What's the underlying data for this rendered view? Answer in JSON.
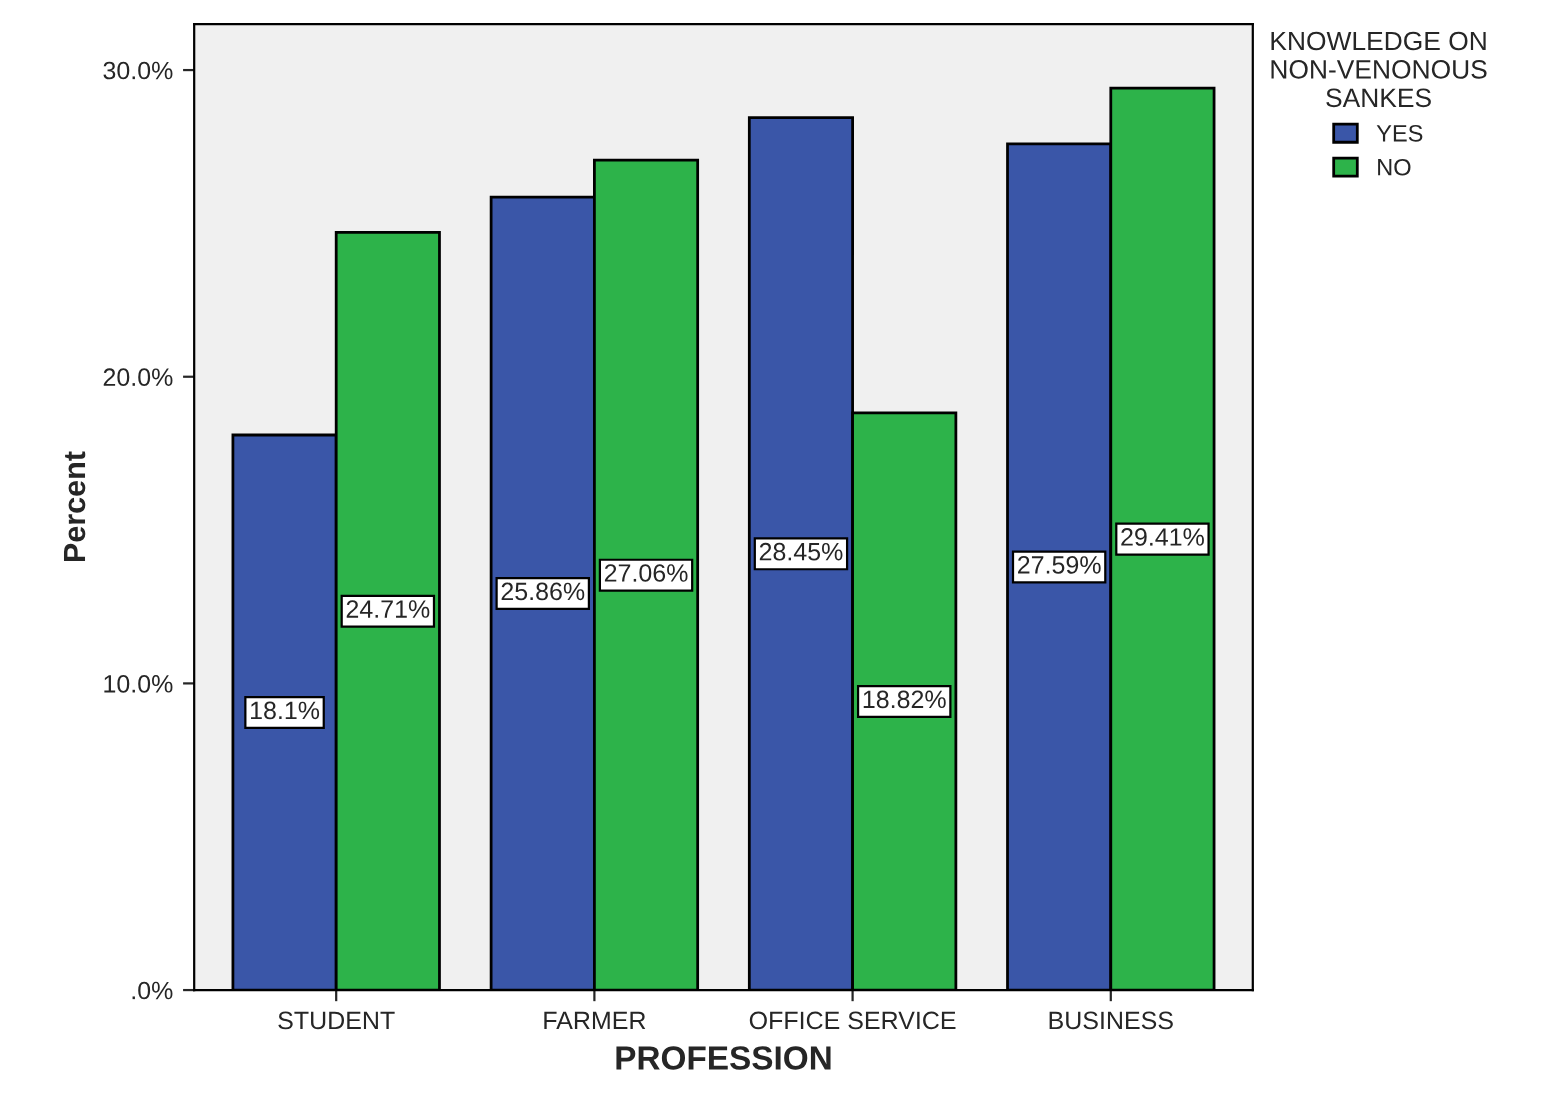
{
  "chart_data": {
    "type": "bar",
    "xlabel": "PROFESSION",
    "ylabel": "Percent",
    "legend_title": "KNOWLEDGE ON\nNON-VENONOUS\nSANKES",
    "categories": [
      "STUDENT",
      "FARMER",
      "OFFICE SERVICE",
      "BUSINESS"
    ],
    "series": [
      {
        "name": "YES",
        "color": "#3a56a8",
        "values": [
          18.1,
          25.86,
          28.45,
          27.59
        ],
        "value_labels": [
          "18.1%",
          "25.86%",
          "28.45%",
          "27.59%"
        ]
      },
      {
        "name": "NO",
        "color": "#2db34a",
        "values": [
          24.71,
          27.06,
          18.82,
          29.41
        ],
        "value_labels": [
          "24.71%",
          "27.06%",
          "18.82%",
          "29.41%"
        ]
      }
    ],
    "ylim": [
      0,
      31.5
    ],
    "yticks": [
      {
        "value": 0,
        "label": ".0%"
      },
      {
        "value": 10,
        "label": "10.0%"
      },
      {
        "value": 20,
        "label": "20.0%"
      },
      {
        "value": 30,
        "label": "30.0%"
      }
    ],
    "grid": false,
    "legend": "top right"
  }
}
